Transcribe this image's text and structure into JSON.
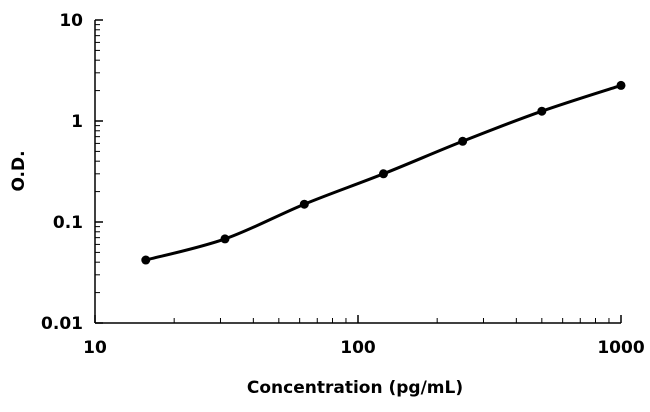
{
  "chart_data": {
    "type": "scatter",
    "title": "",
    "xlabel": "Concentration (pg/mL)",
    "ylabel": "O.D.",
    "x_scale": "log",
    "y_scale": "log",
    "xlim": [
      10,
      1000
    ],
    "ylim": [
      0.01,
      10
    ],
    "x_ticks": [
      "10",
      "100",
      "1000"
    ],
    "y_ticks": [
      "0.01",
      "0.1",
      "1",
      "10"
    ],
    "grid": false,
    "legend": "none",
    "series": [
      {
        "points": [
          {
            "x": 15.6,
            "y": 0.042
          },
          {
            "x": 31.2,
            "y": 0.068
          },
          {
            "x": 62.5,
            "y": 0.15
          },
          {
            "x": 125,
            "y": 0.3
          },
          {
            "x": 250,
            "y": 0.63
          },
          {
            "x": 500,
            "y": 1.25
          },
          {
            "x": 1000,
            "y": 2.25
          }
        ],
        "fit_curve": true,
        "color": "#000000"
      }
    ]
  }
}
